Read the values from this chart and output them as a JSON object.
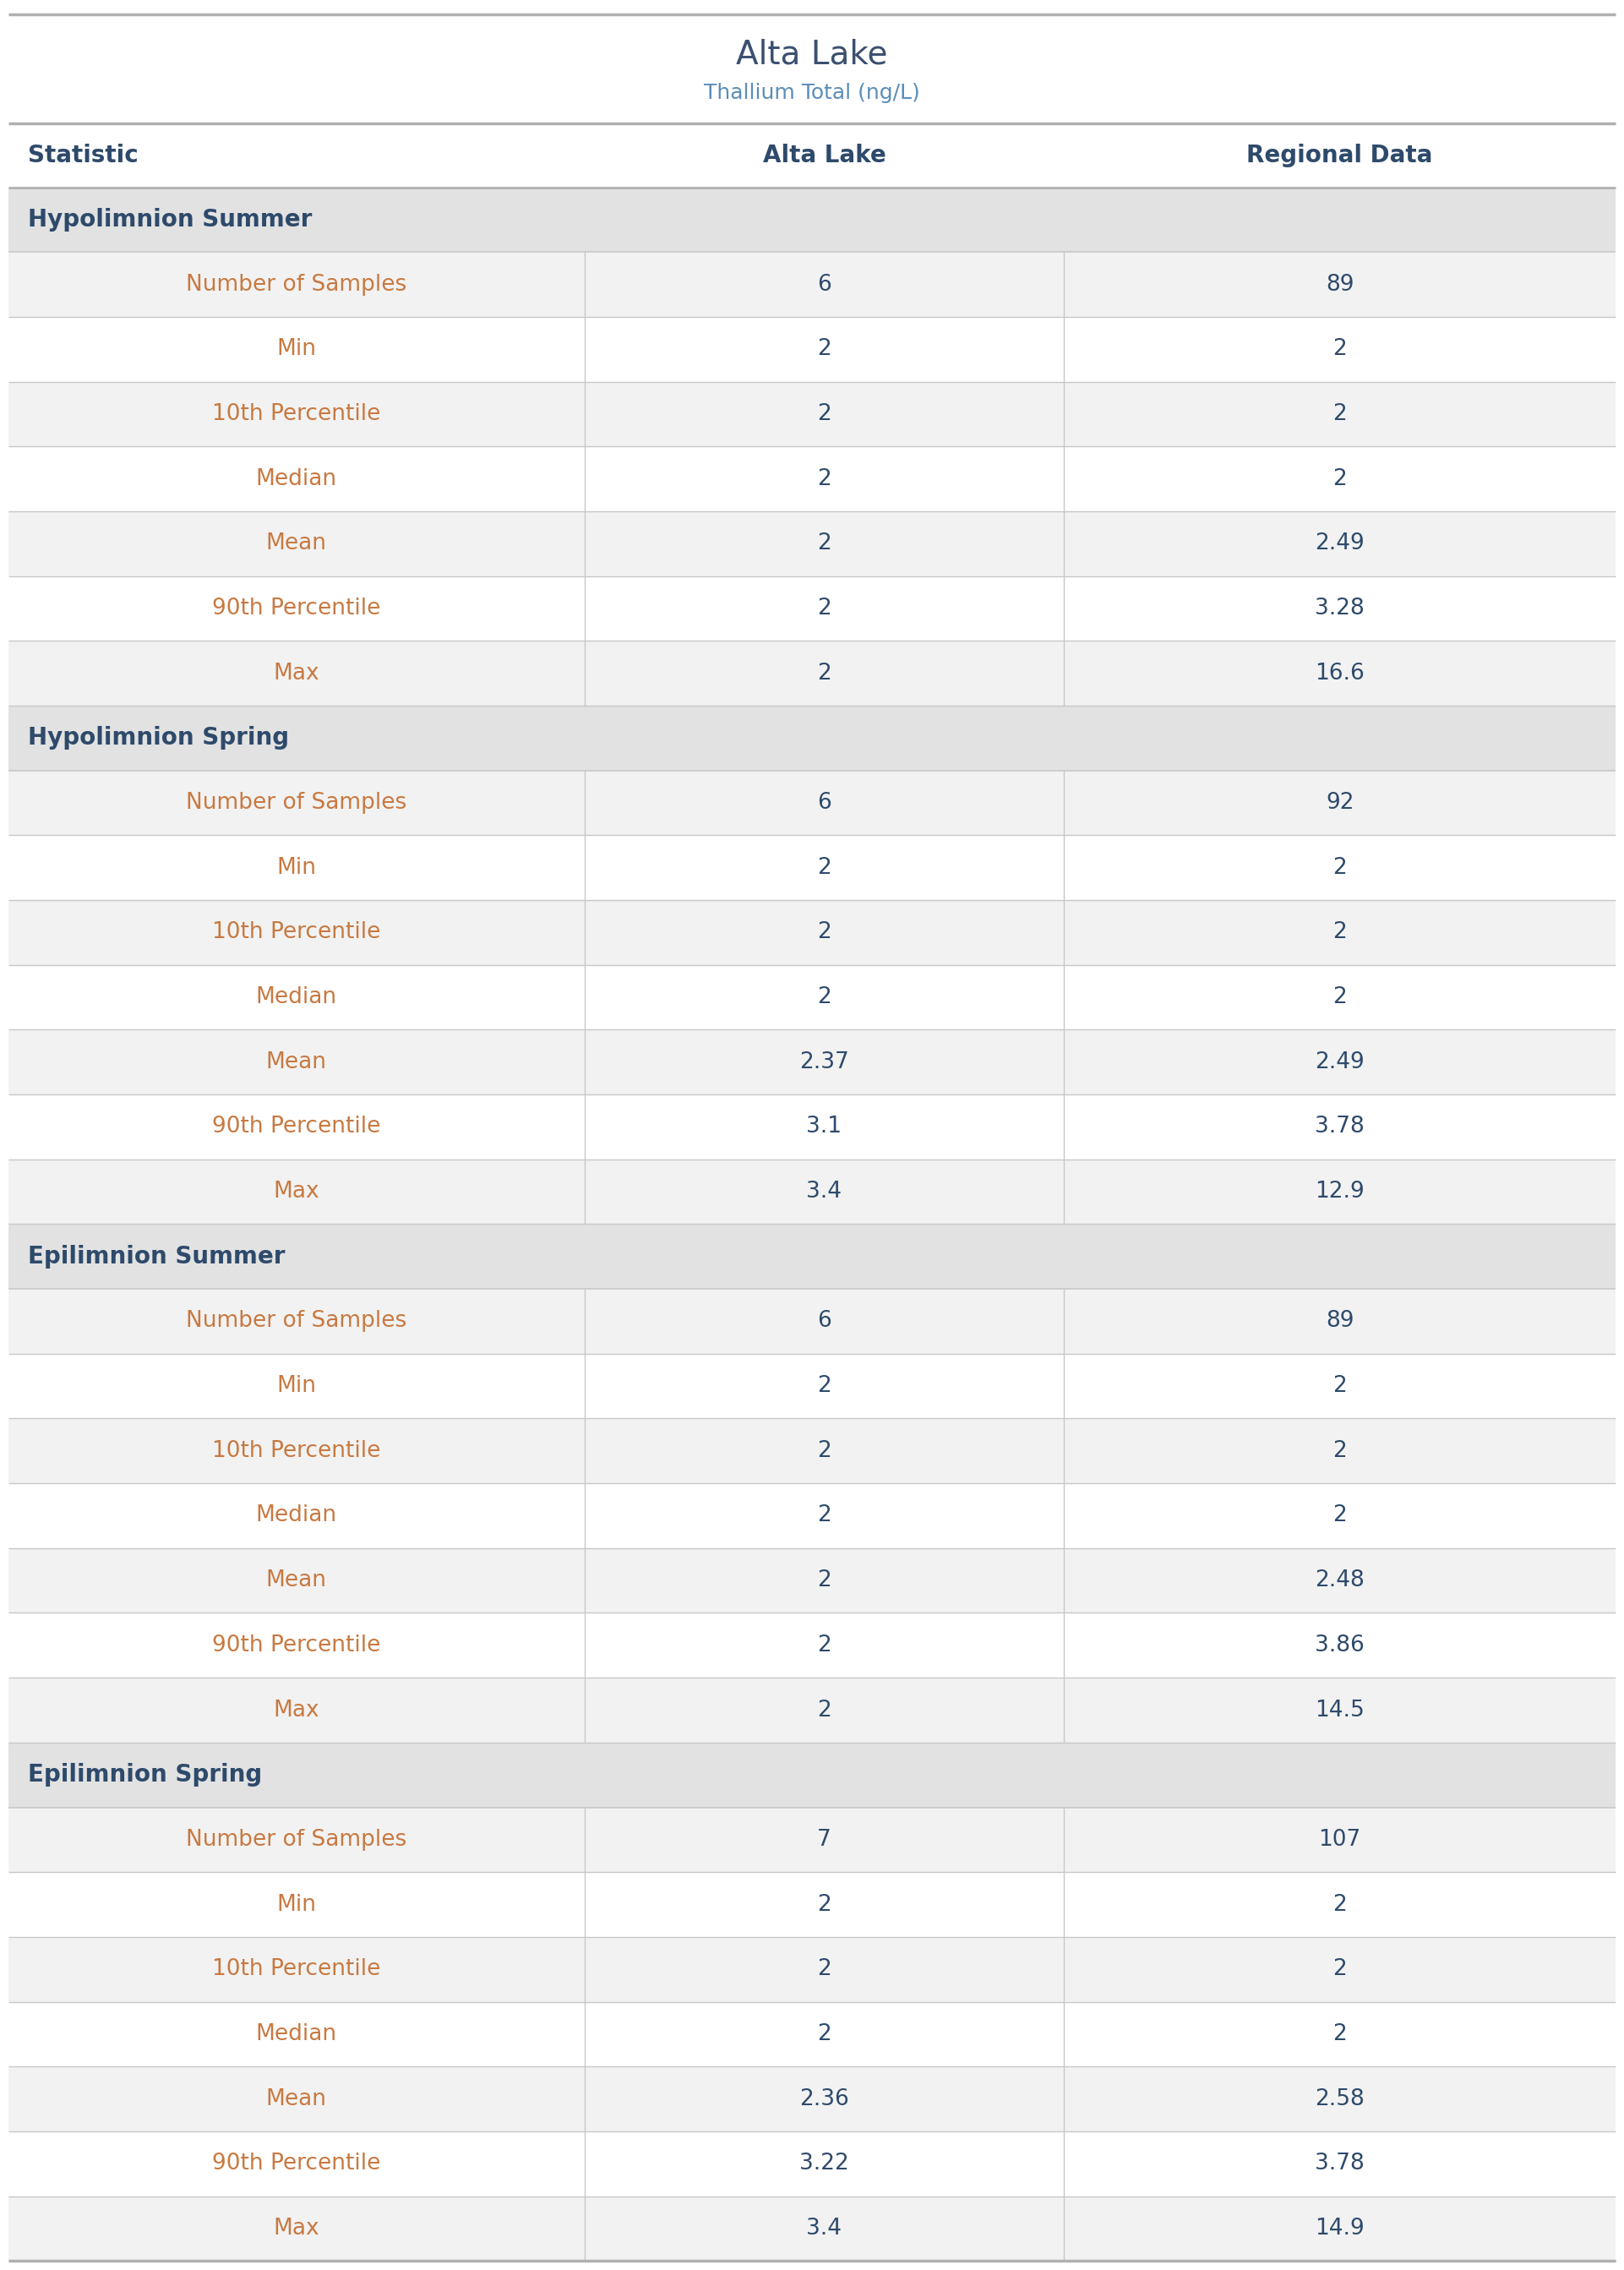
{
  "title": "Alta Lake",
  "subtitle": "Thallium Total (ng/L)",
  "title_color": "#3B5070",
  "subtitle_color": "#5B8DB8",
  "col_headers": [
    "Statistic",
    "Alta Lake",
    "Regional Data"
  ],
  "sections": [
    {
      "name": "Hypolimnion Summer",
      "rows": [
        [
          "Number of Samples",
          "6",
          "89"
        ],
        [
          "Min",
          "2",
          "2"
        ],
        [
          "10th Percentile",
          "2",
          "2"
        ],
        [
          "Median",
          "2",
          "2"
        ],
        [
          "Mean",
          "2",
          "2.49"
        ],
        [
          "90th Percentile",
          "2",
          "3.28"
        ],
        [
          "Max",
          "2",
          "16.6"
        ]
      ]
    },
    {
      "name": "Hypolimnion Spring",
      "rows": [
        [
          "Number of Samples",
          "6",
          "92"
        ],
        [
          "Min",
          "2",
          "2"
        ],
        [
          "10th Percentile",
          "2",
          "2"
        ],
        [
          "Median",
          "2",
          "2"
        ],
        [
          "Mean",
          "2.37",
          "2.49"
        ],
        [
          "90th Percentile",
          "3.1",
          "3.78"
        ],
        [
          "Max",
          "3.4",
          "12.9"
        ]
      ]
    },
    {
      "name": "Epilimnion Summer",
      "rows": [
        [
          "Number of Samples",
          "6",
          "89"
        ],
        [
          "Min",
          "2",
          "2"
        ],
        [
          "10th Percentile",
          "2",
          "2"
        ],
        [
          "Median",
          "2",
          "2"
        ],
        [
          "Mean",
          "2",
          "2.48"
        ],
        [
          "90th Percentile",
          "2",
          "3.86"
        ],
        [
          "Max",
          "2",
          "14.5"
        ]
      ]
    },
    {
      "name": "Epilimnion Spring",
      "rows": [
        [
          "Number of Samples",
          "7",
          "107"
        ],
        [
          "Min",
          "2",
          "2"
        ],
        [
          "10th Percentile",
          "2",
          "2"
        ],
        [
          "Median",
          "2",
          "2"
        ],
        [
          "Mean",
          "2.36",
          "2.58"
        ],
        [
          "90th Percentile",
          "3.22",
          "3.78"
        ],
        [
          "Max",
          "3.4",
          "14.9"
        ]
      ]
    }
  ],
  "bg_white": "#ffffff",
  "bg_light": "#f2f2f2",
  "section_bg": "#e2e2e2",
  "border_color": "#c8c8c8",
  "thick_line_color": "#b0b0b0",
  "col_header_color": "#2E4A6B",
  "section_name_color": "#2E4A6B",
  "statistic_name_color": "#C87941",
  "value_color": "#2E4A6B",
  "col_split1": 0.36,
  "col_split2": 0.655,
  "title_fontsize": 28,
  "subtitle_fontsize": 18,
  "col_header_fontsize": 20,
  "section_fontsize": 20,
  "data_fontsize": 19
}
